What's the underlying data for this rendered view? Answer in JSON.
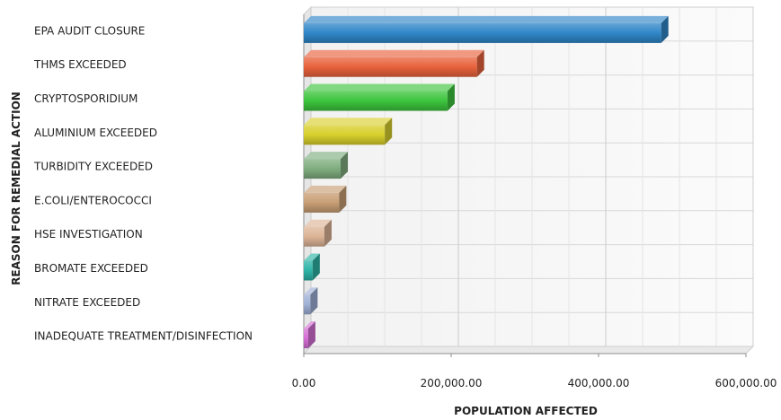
{
  "chart_data": {
    "type": "bar",
    "orientation": "horizontal",
    "style": "3d",
    "categories": [
      "EPA AUDIT CLOSURE",
      "THMS EXCEEDED",
      "CRYPTOSPORIDIUM",
      "ALUMINIUM EXCEEDED",
      "TURBIDITY EXCEEDED",
      "E.COLI/ENTEROCOCCI",
      "HSE INVESTIGATION",
      "BROMATE EXCEEDED",
      "NITRATE EXCEEDED",
      "INADEQUATE TREATMENT/DISINFECTION"
    ],
    "values": [
      485000,
      235000,
      195000,
      110000,
      50000,
      48000,
      28000,
      12000,
      9000,
      6000
    ],
    "colors": [
      "#2f86c8",
      "#e8623c",
      "#3cc43c",
      "#d8d02c",
      "#7fad7f",
      "#c89e74",
      "#dcb496",
      "#2db3a6",
      "#9fb0d6",
      "#d66fd6"
    ],
    "xlabel": "POPULATION AFFECTED",
    "ylabel": "REASON FOR REMEDIAL ACTION",
    "xlim": [
      0,
      600000
    ],
    "xticks": [
      0,
      200000,
      400000,
      600000
    ],
    "xtick_labels": [
      "0.00",
      "200,000.00",
      "400,000.00",
      "600,000.00"
    ],
    "grid": true
  }
}
